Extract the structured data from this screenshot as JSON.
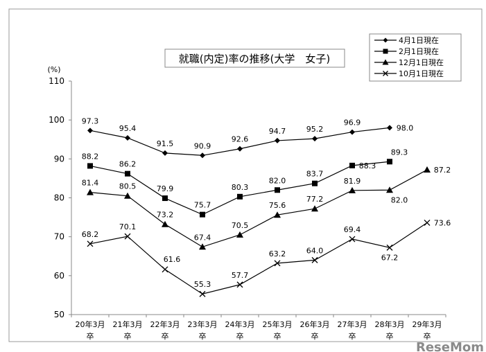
{
  "chart_data": {
    "type": "line",
    "title": "就職(内定)率の推移(大学　女子)",
    "ylabel": "(%)",
    "xlabel": "",
    "ylim": [
      50,
      110
    ],
    "yticks": [
      50,
      60,
      70,
      80,
      90,
      100,
      110
    ],
    "grid": false,
    "legend_position": "top-right",
    "categories": [
      [
        "20年3月",
        "卒"
      ],
      [
        "21年3月",
        "卒"
      ],
      [
        "22年3月",
        "卒"
      ],
      [
        "23年3月",
        "卒"
      ],
      [
        "24年3月",
        "卒"
      ],
      [
        "25年3月",
        "卒"
      ],
      [
        "26年3月",
        "卒"
      ],
      [
        "27年3月",
        "卒"
      ],
      [
        "28年3月",
        "卒"
      ],
      [
        "29年3月",
        "卒"
      ]
    ],
    "series": [
      {
        "name": "4月1日現在",
        "marker": "diamond",
        "values": [
          97.3,
          95.4,
          91.5,
          90.9,
          92.6,
          94.7,
          95.2,
          96.9,
          98.0,
          null
        ]
      },
      {
        "name": "2月1日現在",
        "marker": "square",
        "values": [
          88.2,
          86.2,
          79.9,
          75.7,
          80.3,
          82.0,
          83.7,
          88.3,
          89.3,
          null
        ]
      },
      {
        "name": "12月1日現在",
        "marker": "triangle",
        "values": [
          81.4,
          80.5,
          73.2,
          67.4,
          70.5,
          75.6,
          77.2,
          81.9,
          82.0,
          87.2
        ]
      },
      {
        "name": "10月1日現在",
        "marker": "x",
        "values": [
          68.2,
          70.1,
          61.6,
          55.3,
          57.7,
          63.2,
          64.0,
          69.4,
          67.2,
          73.6
        ]
      }
    ],
    "line_color": "#000000"
  },
  "watermark": "ReseMom"
}
